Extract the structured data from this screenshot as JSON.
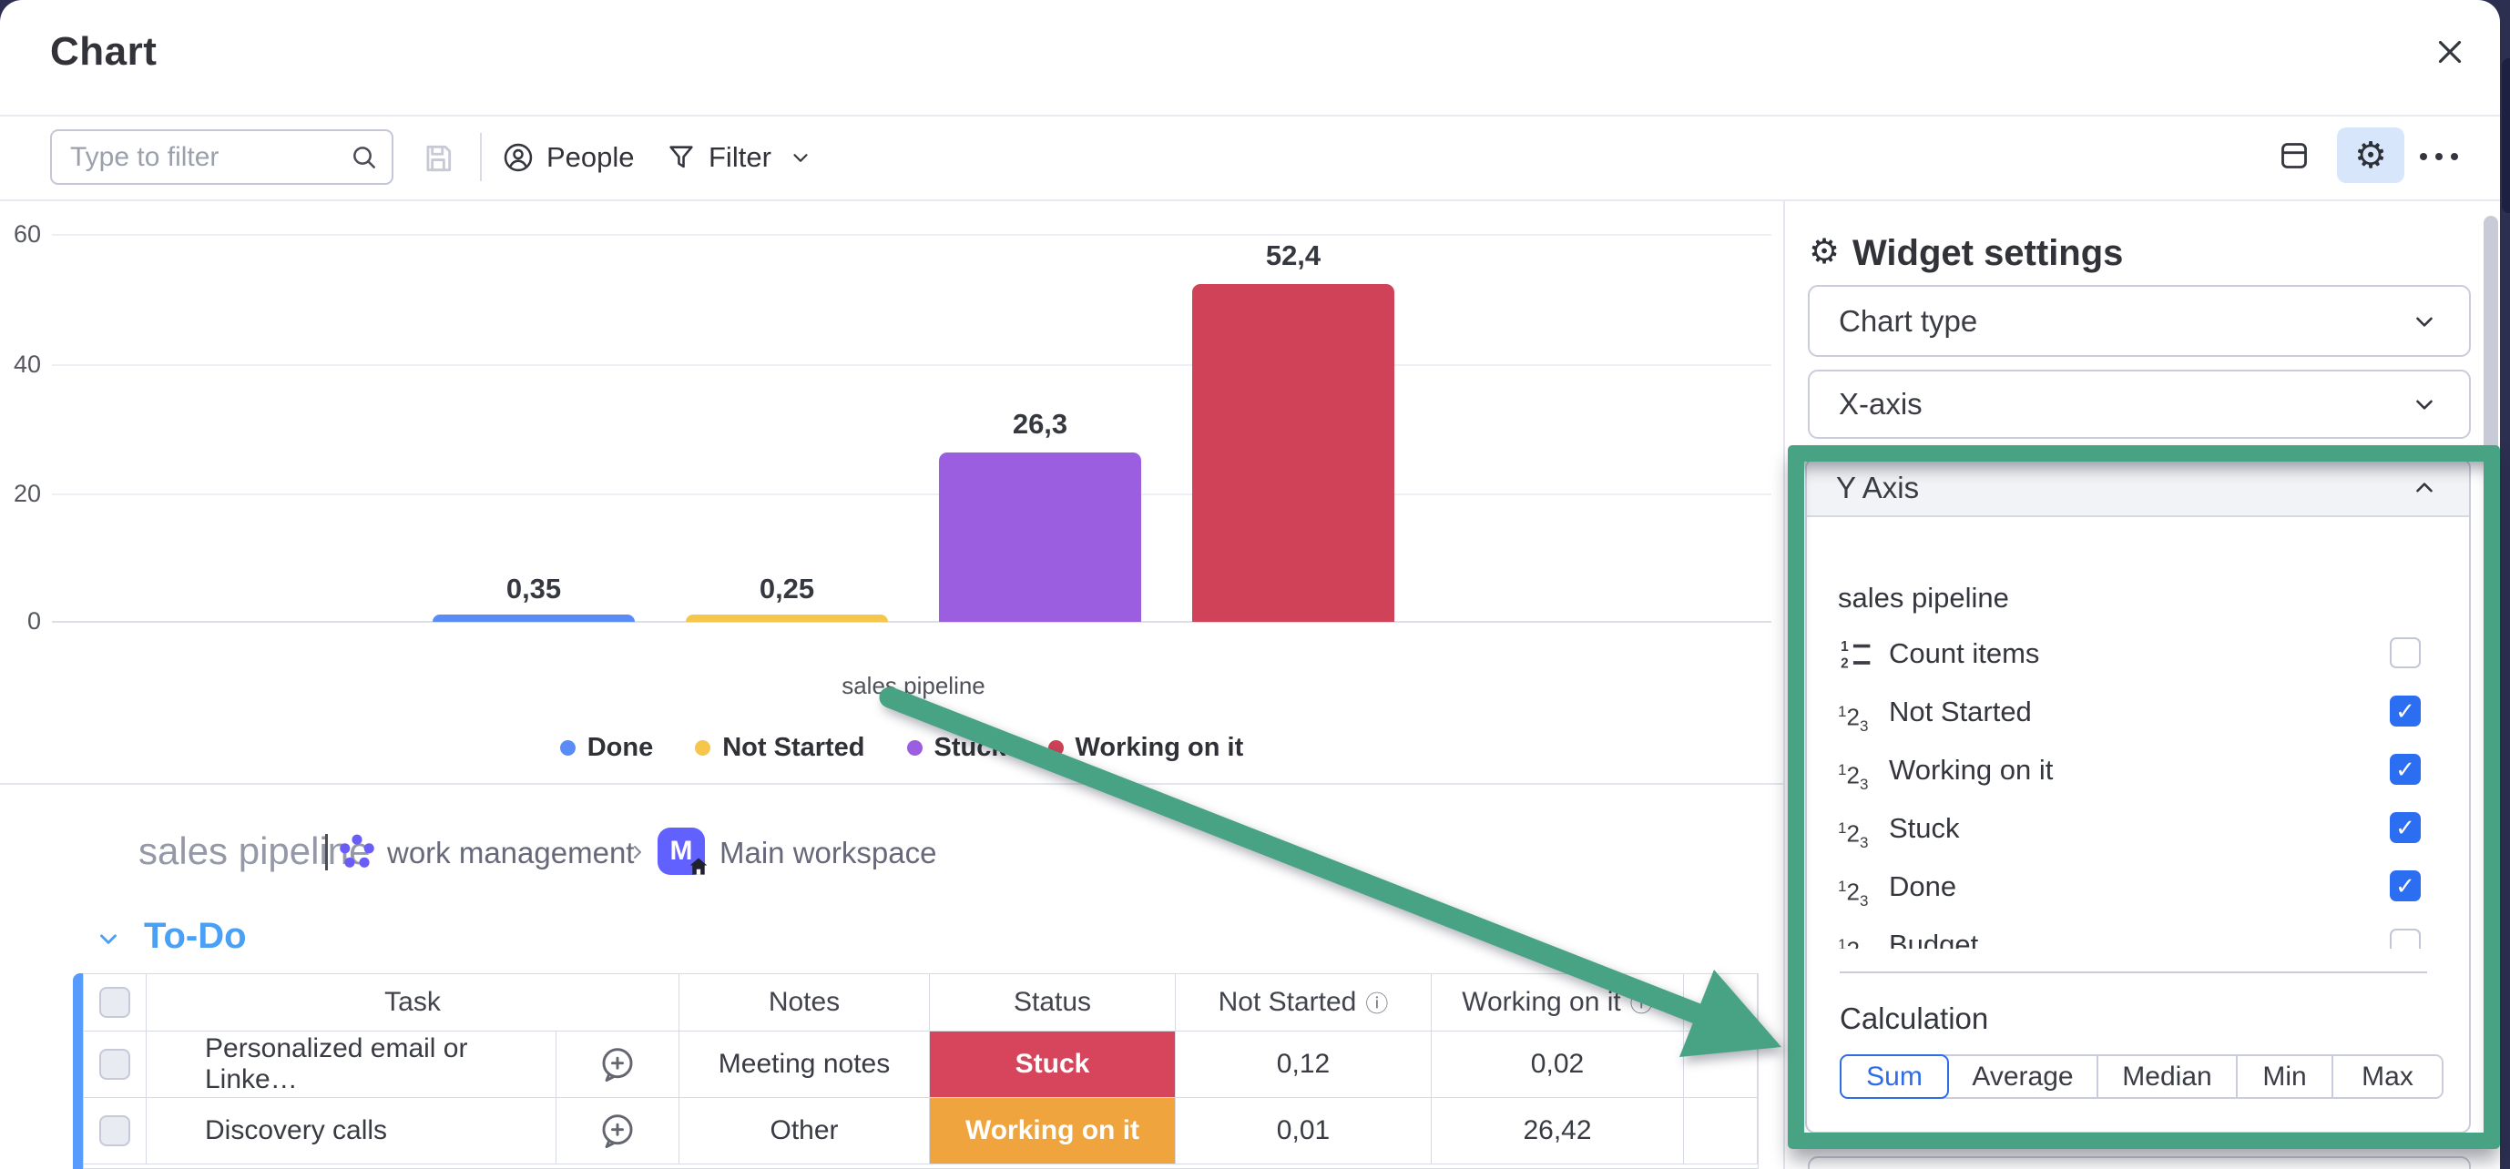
{
  "window": {
    "title": "Chart"
  },
  "toolbar": {
    "filter_placeholder": "Type to filter",
    "people_label": "People",
    "filter_label": "Filter"
  },
  "chart_data": {
    "type": "bar",
    "categories": [
      "Done",
      "Not Started",
      "Stuck",
      "Working on it"
    ],
    "values": [
      0.35,
      0.25,
      26.3,
      52.4
    ],
    "value_labels": [
      "0,35",
      "0,25",
      "26,3",
      "52,4"
    ],
    "colors": [
      "#5a8cf8",
      "#f6c64a",
      "#9b5ee0",
      "#cf4257"
    ],
    "title": "",
    "xlabel": "sales pipeline",
    "ylabel": "",
    "ylim": [
      0,
      60
    ],
    "yticks": [
      "60",
      "40",
      "20",
      "0"
    ],
    "grid": true,
    "legend_position": "bottom"
  },
  "board": {
    "title": "sales pipeline",
    "app_name": "work management",
    "workspace_name": "Main workspace",
    "workspace_avatar_letter": "M",
    "group": {
      "name": "To-Do",
      "color": "#579bfc"
    },
    "table": {
      "headers": {
        "task": "Task",
        "notes": "Notes",
        "status": "Status",
        "not_started": "Not Started",
        "working_on_it": "Working on it"
      },
      "rows": [
        {
          "task": "Personalized email or Linke…",
          "notes": "Meeting notes",
          "status": "Stuck",
          "status_color": "#d6455c",
          "not_started": "0,12",
          "working_on_it": "0,02"
        },
        {
          "task": "Discovery calls",
          "notes": "Other",
          "status": "Working on it",
          "status_color": "#efa43d",
          "not_started": "0,01",
          "working_on_it": "26,42"
        }
      ]
    }
  },
  "settings": {
    "title": "Widget settings",
    "chart_type_label": "Chart type",
    "x_axis_label": "X-axis",
    "y_axis": {
      "label": "Y Axis",
      "source": "sales pipeline",
      "items": [
        {
          "label": "Count items",
          "checked": false,
          "icon": "count-items-icon"
        },
        {
          "label": "Not Started",
          "checked": true,
          "icon": "numbers-icon"
        },
        {
          "label": "Working on it",
          "checked": true,
          "icon": "numbers-icon"
        },
        {
          "label": "Stuck",
          "checked": true,
          "icon": "numbers-icon"
        },
        {
          "label": "Done",
          "checked": true,
          "icon": "numbers-icon"
        },
        {
          "label": "Budget",
          "checked": false,
          "icon": "numbers-icon"
        }
      ],
      "calculation": {
        "label": "Calculation",
        "selected": "Sum",
        "options": [
          "Sum",
          "Average",
          "Median",
          "Min",
          "Max"
        ]
      }
    }
  },
  "annotation": {
    "highlight_color": "#48a385"
  }
}
